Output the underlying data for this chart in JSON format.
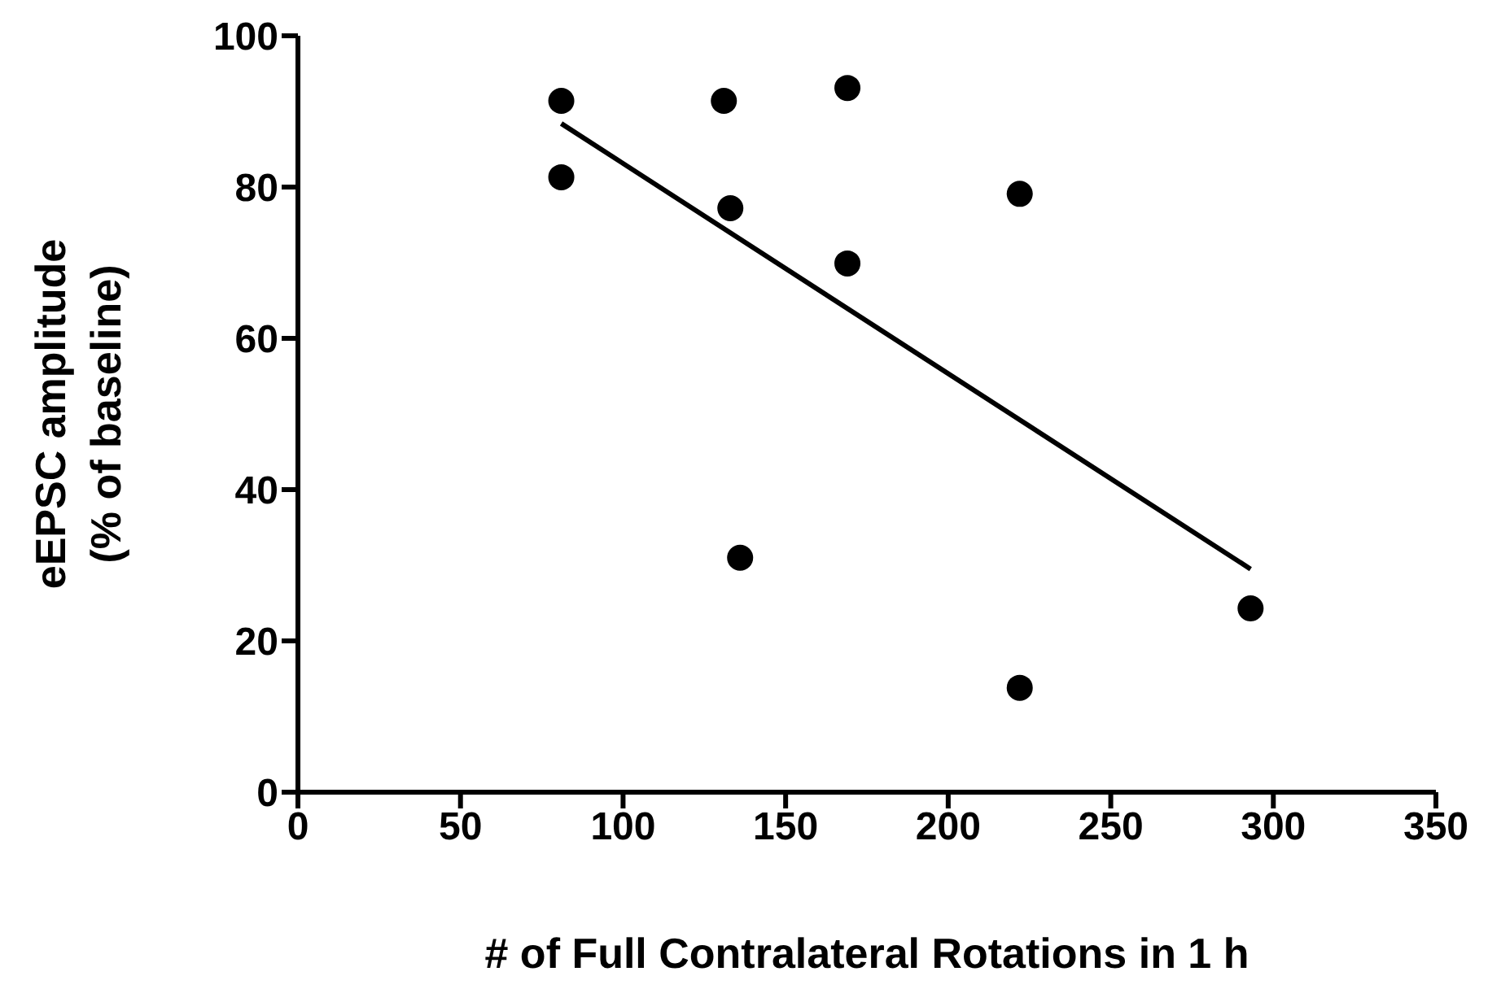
{
  "chart_data": {
    "type": "scatter",
    "xlabel": "# of Full Contralateral Rotations in 1 h",
    "ylabel": "eEPSC amplitude\n(% of baseline)",
    "xlim": [
      0,
      350
    ],
    "xticks": [
      0,
      50,
      100,
      150,
      200,
      250,
      300,
      350
    ],
    "ylim": [
      0,
      100
    ],
    "yticks": [
      0,
      20,
      40,
      60,
      80,
      100
    ],
    "marker": "circle",
    "series": [
      {
        "color": "#000000",
        "x": [
          81,
          81,
          131,
          133,
          169,
          169,
          222,
          136,
          222,
          293
        ],
        "values": [
          91.4,
          81.3,
          91.4,
          77.2,
          93.1,
          69.9,
          79.1,
          31,
          13.8,
          24.3
        ]
      },
      {
        "type": "line",
        "color": "#000000",
        "marker": "none",
        "x": [
          81,
          293
        ],
        "values": [
          88.4,
          29.5
        ]
      }
    ]
  }
}
